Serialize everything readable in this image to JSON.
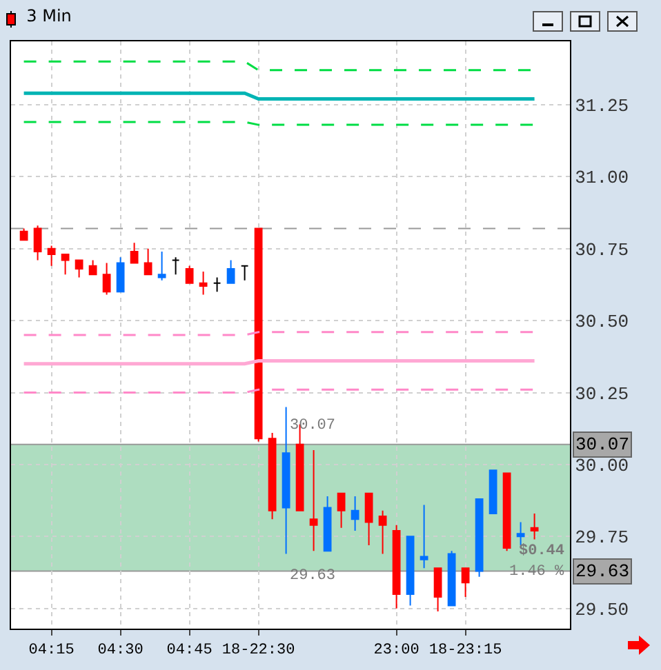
{
  "chart_data": {
    "type": "candlestick",
    "title": "3 Min",
    "categories": [
      null,
      null,
      "04:15",
      null,
      null,
      null,
      null,
      "04:30",
      null,
      null,
      null,
      null,
      "04:45",
      null,
      null,
      null,
      null,
      "18-22:30",
      null,
      null,
      null,
      null,
      null,
      null,
      null,
      null,
      null,
      "23:00",
      null,
      null,
      null,
      null,
      "18-23:15",
      null,
      null,
      null,
      null,
      null
    ],
    "ohlc": [
      [
        30.81,
        30.82,
        30.78,
        30.78
      ],
      [
        30.82,
        30.83,
        30.71,
        30.74
      ],
      [
        30.75,
        30.76,
        30.69,
        30.73
      ],
      [
        30.73,
        30.73,
        30.66,
        30.71
      ],
      [
        30.71,
        30.71,
        30.65,
        30.68
      ],
      [
        30.69,
        30.71,
        30.66,
        30.66
      ],
      [
        30.66,
        30.7,
        30.59,
        30.6
      ],
      [
        30.6,
        30.72,
        30.6,
        30.7
      ],
      [
        30.74,
        30.77,
        30.7,
        30.7
      ],
      [
        30.7,
        30.75,
        30.66,
        30.66
      ],
      [
        30.65,
        30.74,
        30.64,
        30.66
      ],
      [
        30.71,
        30.72,
        30.66,
        30.71
      ],
      [
        30.68,
        30.69,
        30.63,
        30.63
      ],
      [
        30.63,
        30.67,
        30.59,
        30.62
      ],
      [
        30.63,
        30.65,
        30.6,
        30.63
      ],
      [
        30.63,
        30.71,
        30.63,
        30.68
      ],
      [
        30.69,
        30.69,
        30.64,
        30.69
      ],
      [
        30.82,
        30.82,
        30.08,
        30.09
      ],
      [
        30.09,
        30.11,
        29.81,
        29.84
      ],
      [
        29.85,
        30.2,
        29.69,
        30.04
      ],
      [
        30.07,
        30.14,
        29.84,
        29.84
      ],
      [
        29.81,
        30.05,
        29.7,
        29.79
      ],
      [
        29.7,
        29.89,
        29.7,
        29.85
      ],
      [
        29.9,
        29.9,
        29.78,
        29.84
      ],
      [
        29.81,
        29.89,
        29.77,
        29.84
      ],
      [
        29.9,
        29.9,
        29.72,
        29.8
      ],
      [
        29.82,
        29.84,
        29.69,
        29.79
      ],
      [
        29.77,
        29.79,
        29.5,
        29.55
      ],
      [
        29.55,
        29.75,
        29.51,
        29.75
      ],
      [
        29.67,
        29.86,
        29.64,
        29.68
      ],
      [
        29.64,
        29.64,
        29.49,
        29.54
      ],
      [
        29.51,
        29.7,
        29.51,
        29.69
      ],
      [
        29.64,
        29.64,
        29.54,
        29.59
      ],
      [
        29.63,
        29.88,
        29.61,
        29.88
      ],
      [
        29.83,
        29.98,
        29.83,
        29.98
      ],
      [
        29.97,
        29.97,
        29.7,
        29.71
      ],
      [
        29.75,
        29.8,
        29.72,
        29.76
      ],
      [
        29.78,
        29.83,
        29.74,
        29.77
      ]
    ],
    "colors": [
      "#ff0000",
      "#ff0000",
      "#ff0000",
      "#ff0000",
      "#ff0000",
      "#ff0000",
      "#ff0000",
      "#0070ff",
      "#ff0000",
      "#ff0000",
      "#0070ff",
      "#000000",
      "#ff0000",
      "#ff0000",
      "#000000",
      "#0070ff",
      "#000000",
      "#ff0000",
      "#ff0000",
      "#0070ff",
      "#ff0000",
      "#ff0000",
      "#0070ff",
      "#ff0000",
      "#0070ff",
      "#ff0000",
      "#ff0000",
      "#ff0000",
      "#0070ff",
      "#0070ff",
      "#ff0000",
      "#0070ff",
      "#ff0000",
      "#0070ff",
      "#0070ff",
      "#ff0000",
      "#0070ff",
      "#ff0000"
    ],
    "series": [
      {
        "type": "line",
        "color": "#00dd44",
        "line_style": "dashed",
        "values": [
          31.4,
          31.4,
          31.4,
          31.4,
          31.4,
          31.4,
          31.4,
          31.4,
          31.4,
          31.4,
          31.4,
          31.4,
          31.4,
          31.4,
          31.4,
          31.4,
          31.4,
          31.37,
          31.37,
          31.37,
          31.37,
          31.37,
          31.37,
          31.37,
          31.37,
          31.37,
          31.37,
          31.37,
          31.37,
          31.37,
          31.37,
          31.37,
          31.37,
          31.37,
          31.37,
          31.37,
          31.37,
          31.37
        ]
      },
      {
        "type": "line",
        "color": "#00b4b4",
        "line_style": "solid",
        "values": [
          31.29,
          31.29,
          31.29,
          31.29,
          31.29,
          31.29,
          31.29,
          31.29,
          31.29,
          31.29,
          31.29,
          31.29,
          31.29,
          31.29,
          31.29,
          31.29,
          31.29,
          31.27,
          31.27,
          31.27,
          31.27,
          31.27,
          31.27,
          31.27,
          31.27,
          31.27,
          31.27,
          31.27,
          31.27,
          31.27,
          31.27,
          31.27,
          31.27,
          31.27,
          31.27,
          31.27,
          31.27,
          31.27
        ]
      },
      {
        "type": "line",
        "color": "#00dd44",
        "line_style": "dashed",
        "values": [
          31.19,
          31.19,
          31.19,
          31.19,
          31.19,
          31.19,
          31.19,
          31.19,
          31.19,
          31.19,
          31.19,
          31.19,
          31.19,
          31.19,
          31.19,
          31.19,
          31.19,
          31.18,
          31.18,
          31.18,
          31.18,
          31.18,
          31.18,
          31.18,
          31.18,
          31.18,
          31.18,
          31.18,
          31.18,
          31.18,
          31.18,
          31.18,
          31.18,
          31.18,
          31.18,
          31.18,
          31.18,
          31.18
        ]
      },
      {
        "type": "line",
        "color": "#ff88c8",
        "line_style": "dashed",
        "values": [
          30.45,
          30.45,
          30.45,
          30.45,
          30.45,
          30.45,
          30.45,
          30.45,
          30.45,
          30.45,
          30.45,
          30.45,
          30.45,
          30.45,
          30.45,
          30.45,
          30.45,
          30.46,
          30.46,
          30.46,
          30.46,
          30.46,
          30.46,
          30.46,
          30.46,
          30.46,
          30.46,
          30.46,
          30.46,
          30.46,
          30.46,
          30.46,
          30.46,
          30.46,
          30.46,
          30.46,
          30.46,
          30.46
        ]
      },
      {
        "type": "line",
        "color": "#ffa8d4",
        "line_style": "solid",
        "values": [
          30.35,
          30.35,
          30.35,
          30.35,
          30.35,
          30.35,
          30.35,
          30.35,
          30.35,
          30.35,
          30.35,
          30.35,
          30.35,
          30.35,
          30.35,
          30.35,
          30.35,
          30.36,
          30.36,
          30.36,
          30.36,
          30.36,
          30.36,
          30.36,
          30.36,
          30.36,
          30.36,
          30.36,
          30.36,
          30.36,
          30.36,
          30.36,
          30.36,
          30.36,
          30.36,
          30.36,
          30.36,
          30.36
        ]
      },
      {
        "type": "line",
        "color": "#ff88c8",
        "line_style": "dashed",
        "values": [
          30.25,
          30.25,
          30.25,
          30.25,
          30.25,
          30.25,
          30.25,
          30.25,
          30.25,
          30.25,
          30.25,
          30.25,
          30.25,
          30.25,
          30.25,
          30.25,
          30.25,
          30.26,
          30.26,
          30.26,
          30.26,
          30.26,
          30.26,
          30.26,
          30.26,
          30.26,
          30.26,
          30.26,
          30.26,
          30.26,
          30.26,
          30.26,
          30.26,
          30.26,
          30.26,
          30.26,
          30.26,
          30.26
        ]
      }
    ],
    "ylim": [
      29.43,
      31.47
    ],
    "yticks": [
      {
        "value": 29.5,
        "label": "29.50"
      },
      {
        "value": 29.75,
        "label": "29.75"
      },
      {
        "value": 30,
        "label": "30.00"
      },
      {
        "value": 30.25,
        "label": "30.25"
      },
      {
        "value": 30.5,
        "label": "30.50"
      },
      {
        "value": 30.75,
        "label": "30.75"
      },
      {
        "value": 31,
        "label": "31.00"
      },
      {
        "value": 31.25,
        "label": "31.25"
      }
    ],
    "ref_lines": [
      {
        "axis": "y",
        "value": 30.82,
        "color": "#999999",
        "line_style": "dashed"
      },
      {
        "axis": "y",
        "value": 30.07,
        "label": "30.07",
        "color": "#999999",
        "line_style": "solid"
      },
      {
        "axis": "y",
        "value": 29.63,
        "label": "29.63",
        "color": "#999999",
        "line_style": "solid"
      }
    ],
    "bands": [
      {
        "axis": "y",
        "from": 29.63,
        "to": 30.07,
        "color": "#9ad5b0"
      }
    ],
    "annotations": [
      "30.07",
      "29.63",
      "$0.44",
      "1.46 %"
    ],
    "grid": true
  }
}
